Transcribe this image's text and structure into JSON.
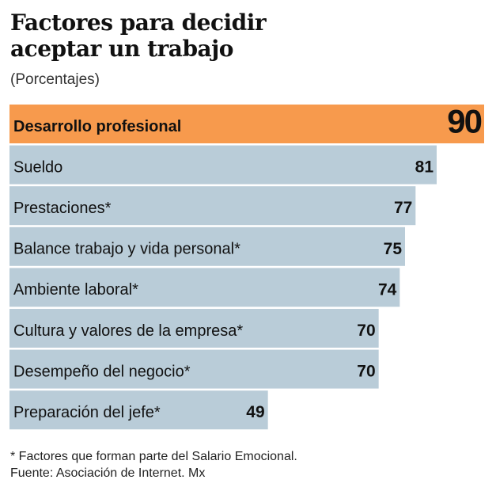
{
  "chart_data": {
    "type": "hbar",
    "title": "Factores para decidir aceptar un trabajo",
    "subtitle": "(Porcentajes)",
    "categories": [
      "Desarrollo profesional",
      "Sueldo",
      "Prestaciones*",
      "Balance trabajo y vida personal*",
      "Ambiente laboral*",
      "Cultura y valores de la empresa*",
      "Desempeño del negocio*",
      "Preparación del jefe*"
    ],
    "values": [
      90,
      81,
      77,
      75,
      74,
      70,
      70,
      49
    ],
    "colors": [
      "#f79a4d",
      "#b9ccd8",
      "#b9ccd8",
      "#b9ccd8",
      "#b9ccd8",
      "#b9ccd8",
      "#b9ccd8",
      "#b9ccd8"
    ],
    "notes": [
      "* Factores que forman parte del Salario Emocional.",
      "Fuente: Asociación de Internet. Mx"
    ]
  }
}
